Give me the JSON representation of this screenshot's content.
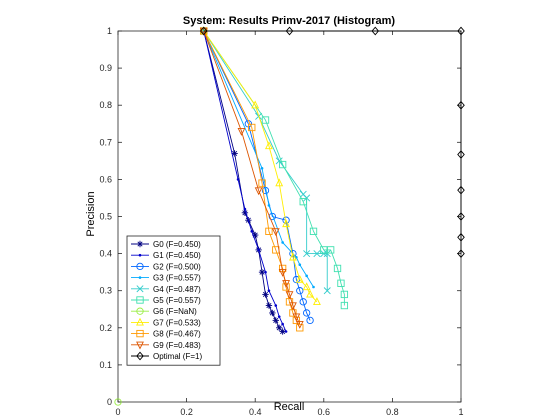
{
  "chart_data": {
    "type": "line",
    "title": "System: Results Primv-2017 (Histogram)",
    "xlabel": "Recall",
    "ylabel": "Precision",
    "xlim": [
      0,
      1
    ],
    "ylim": [
      0,
      1
    ],
    "xticks": [
      "0",
      "0.2",
      "0.4",
      "0.6",
      "0.8",
      "1"
    ],
    "xtick_values": [
      0,
      0.2,
      0.4,
      0.6,
      0.8,
      1
    ],
    "yticks": [
      "0",
      "0.1",
      "0.2",
      "0.3",
      "0.4",
      "0.5",
      "0.6",
      "0.7",
      "0.8",
      "0.9",
      "1"
    ],
    "ytick_values": [
      0,
      0.1,
      0.2,
      0.3,
      0.4,
      0.5,
      0.6,
      0.7,
      0.8,
      0.9,
      1
    ],
    "grid": false,
    "legend_position": "bottom-left",
    "series": [
      {
        "name": "G0 (F=0.450)",
        "color": "#000080",
        "marker": "asterisk",
        "x": [
          0.25,
          0.34,
          0.37,
          0.38,
          0.4,
          0.41,
          0.42,
          0.43,
          0.44,
          0.45,
          0.46,
          0.47,
          0.48
        ],
        "y": [
          1.0,
          0.67,
          0.51,
          0.49,
          0.45,
          0.41,
          0.35,
          0.29,
          0.26,
          0.24,
          0.22,
          0.2,
          0.19
        ]
      },
      {
        "name": "G1 (F=0.450)",
        "color": "#0000cc",
        "marker": "point",
        "x": [
          0.25,
          0.35,
          0.37,
          0.39,
          0.41,
          0.43,
          0.44,
          0.46,
          0.47,
          0.48,
          0.49
        ],
        "y": [
          1.0,
          0.6,
          0.52,
          0.46,
          0.41,
          0.35,
          0.3,
          0.26,
          0.23,
          0.21,
          0.19
        ]
      },
      {
        "name": "G2 (F=0.500)",
        "color": "#0066ff",
        "marker": "circle",
        "x": [
          0.25,
          0.38,
          0.43,
          0.45,
          0.49,
          0.51,
          0.52,
          0.53,
          0.54,
          0.55,
          0.56
        ],
        "y": [
          1.0,
          0.75,
          0.57,
          0.5,
          0.49,
          0.4,
          0.33,
          0.3,
          0.27,
          0.24,
          0.22
        ]
      },
      {
        "name": "G3 (F=0.557)",
        "color": "#00aaff",
        "marker": "point",
        "x": [
          0.25,
          0.42,
          0.44,
          0.48,
          0.52,
          0.53,
          0.55,
          0.57
        ],
        "y": [
          1.0,
          0.63,
          0.53,
          0.43,
          0.39,
          0.37,
          0.34,
          0.31
        ]
      },
      {
        "name": "G4 (F=0.487)",
        "color": "#33cccc",
        "marker": "x",
        "x": [
          0.25,
          0.41,
          0.47,
          0.54,
          0.55,
          0.55,
          0.58,
          0.6,
          0.61,
          0.61
        ],
        "y": [
          1.0,
          0.77,
          0.65,
          0.56,
          0.55,
          0.4,
          0.4,
          0.4,
          0.4,
          0.3
        ]
      },
      {
        "name": "G5 (F=0.557)",
        "color": "#40e0b0",
        "marker": "square",
        "x": [
          0.25,
          0.43,
          0.48,
          0.54,
          0.57,
          0.6,
          0.62,
          0.64,
          0.65,
          0.66,
          0.66
        ],
        "y": [
          1.0,
          0.76,
          0.64,
          0.54,
          0.46,
          0.41,
          0.41,
          0.36,
          0.32,
          0.29,
          0.26
        ]
      },
      {
        "name": "G6 (F=NaN)",
        "color": "#99ee44",
        "marker": "circle",
        "x": [
          0.0
        ],
        "y": [
          0.0
        ]
      },
      {
        "name": "G7 (F=0.533)",
        "color": "#ffee00",
        "marker": "triangle-up",
        "x": [
          0.25,
          0.4,
          0.44,
          0.47,
          0.49,
          0.51,
          0.53,
          0.55,
          0.56,
          0.58
        ],
        "y": [
          1.0,
          0.8,
          0.69,
          0.59,
          0.48,
          0.39,
          0.33,
          0.31,
          0.29,
          0.27
        ]
      },
      {
        "name": "G8 (F=0.467)",
        "color": "#ff9900",
        "marker": "square",
        "x": [
          0.25,
          0.39,
          0.42,
          0.44,
          0.46,
          0.48,
          0.49,
          0.5,
          0.51,
          0.52,
          0.53
        ],
        "y": [
          1.0,
          0.74,
          0.59,
          0.46,
          0.41,
          0.36,
          0.31,
          0.27,
          0.24,
          0.22,
          0.2
        ]
      },
      {
        "name": "G9 (F=0.483)",
        "color": "#dd5500",
        "marker": "triangle-down",
        "x": [
          0.25,
          0.36,
          0.41,
          0.46,
          0.48,
          0.49,
          0.5,
          0.51,
          0.52,
          0.53
        ],
        "y": [
          1.0,
          0.73,
          0.57,
          0.46,
          0.35,
          0.32,
          0.29,
          0.26,
          0.23,
          0.21
        ]
      },
      {
        "name": "Optimal (F=1)",
        "color": "#000000",
        "marker": "diamond",
        "x": [
          0.25,
          0.5,
          0.75,
          1.0,
          1.0,
          1.0,
          1.0,
          1.0,
          1.0,
          1.0
        ],
        "y": [
          1.0,
          1.0,
          1.0,
          1.0,
          0.8,
          0.667,
          0.571,
          0.5,
          0.444,
          0.4
        ]
      }
    ]
  }
}
